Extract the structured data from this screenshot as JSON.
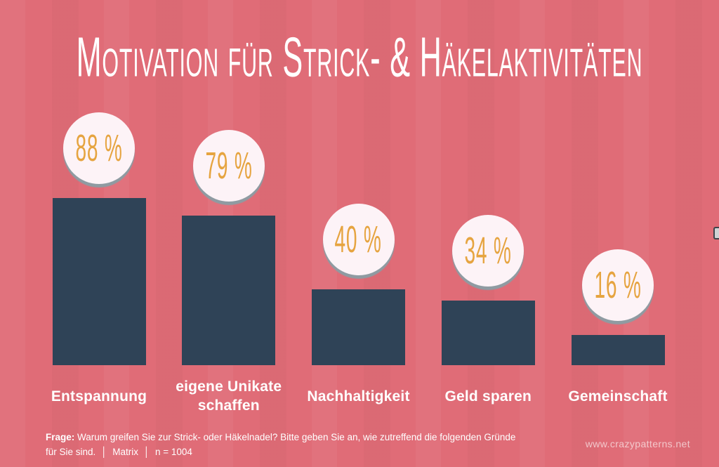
{
  "title": "Motivation für Strick- & Häkelaktivitäten",
  "chart_data": {
    "type": "bar",
    "title": "Motivation für Strick- & Häkelaktivitäten",
    "categories": [
      "Entspannung",
      "eigene Unikate schaffen",
      "Nachhaltigkeit",
      "Geld sparen",
      "Gemeinschaft"
    ],
    "values": [
      88,
      79,
      40,
      34,
      16
    ],
    "value_labels": [
      "88 %",
      "79 %",
      "40 %",
      "34 %",
      "16 %"
    ],
    "unit": "%",
    "xlabel": "",
    "ylabel": "",
    "ylim": [
      0,
      100
    ],
    "grid": false,
    "legend": "none",
    "colors": {
      "background": "#e06c77",
      "bar": "#2f4357",
      "badge_fill": "#fdf3f7",
      "badge_shadow": "#8f9ba2",
      "badge_number": "#e6a440",
      "text": "#ffffff"
    }
  },
  "footer": {
    "question_label": "Frage:",
    "question_text": "Warum greifen Sie zur Strick- oder Häkelnadel? Bitte geben Sie an, wie zutreffend die folgenden Gründe für Sie sind.",
    "separator": "│",
    "method": "Matrix",
    "sample": "n = 1004",
    "website": "www.crazypatterns.net"
  }
}
